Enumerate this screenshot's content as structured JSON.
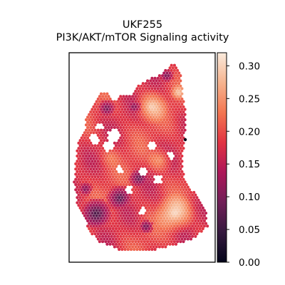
{
  "chart_data": {
    "type": "heatmap",
    "title": "UKF255",
    "subtitle": "PI3K/AKT/mTOR Signaling activity",
    "xlabel": "",
    "ylabel": "",
    "colormap": "rocket",
    "colormap_stops": [
      "#03051a",
      "#35193e",
      "#701f57",
      "#ad1759",
      "#e13342",
      "#f37651",
      "#f6b48f",
      "#faebdd"
    ],
    "colorbar": {
      "min": 0.0,
      "max": 0.32,
      "ticks": [
        0.0,
        0.05,
        0.1,
        0.15,
        0.2,
        0.25,
        0.3
      ],
      "tick_labels": [
        "0.00",
        "0.05",
        "0.10",
        "0.15",
        "0.20",
        "0.25",
        "0.30"
      ]
    },
    "outlier_spot_value": 0.0
  }
}
